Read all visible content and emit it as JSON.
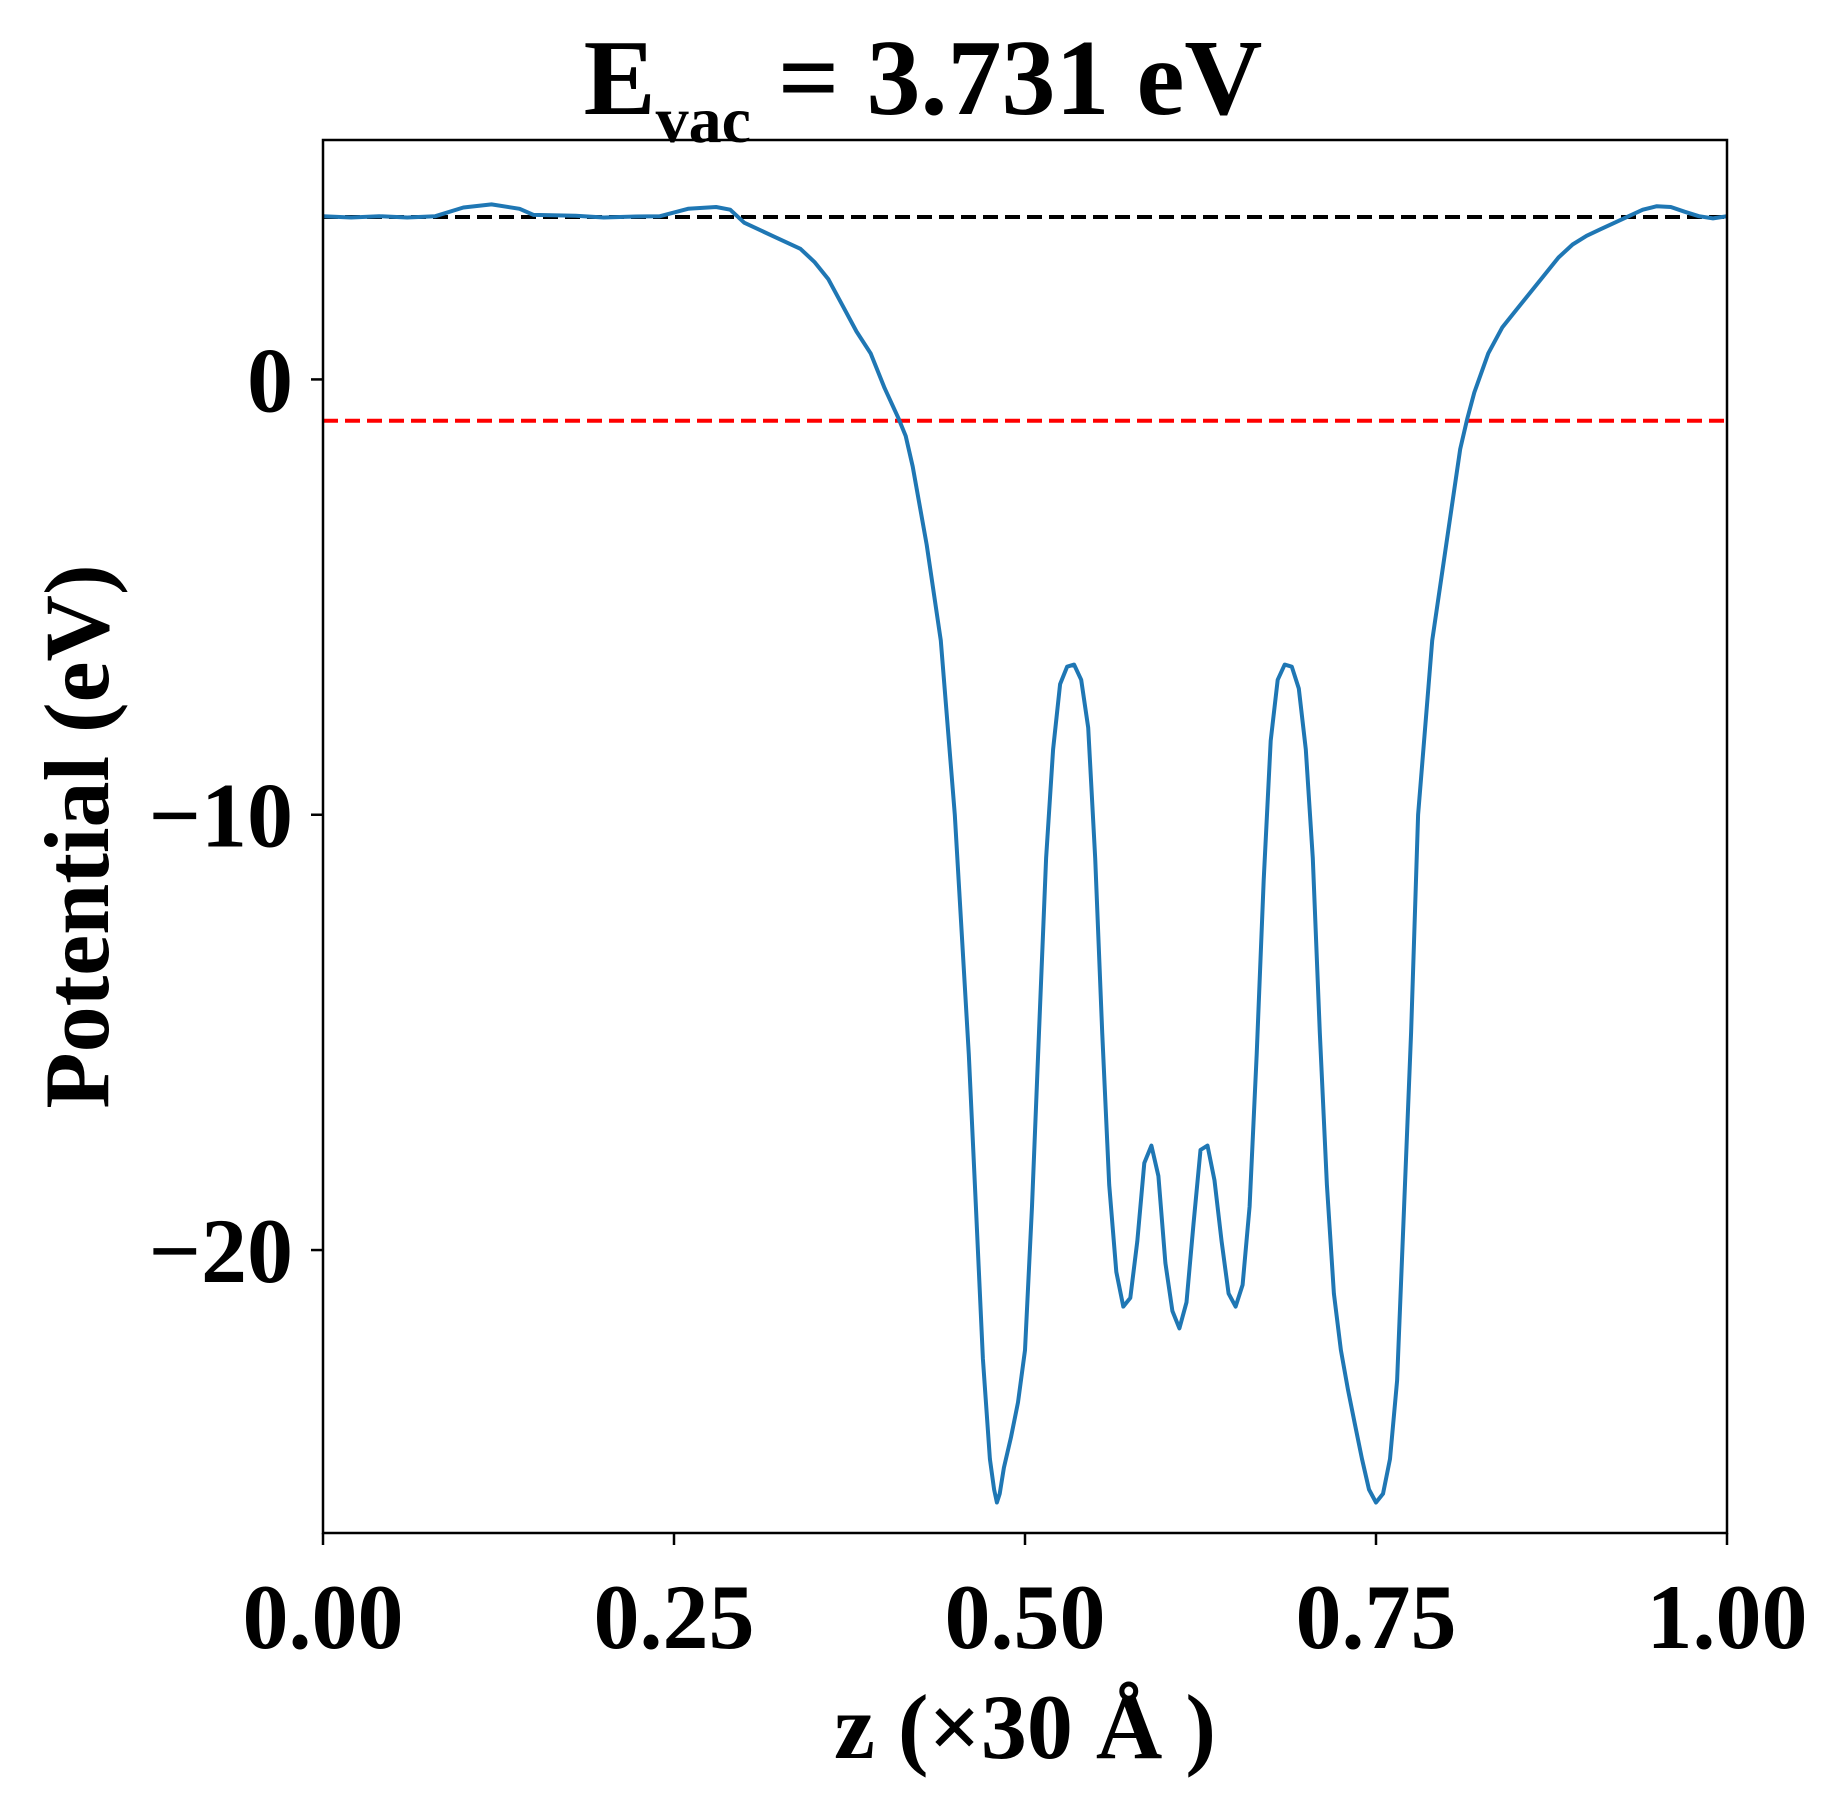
{
  "chart_data": {
    "type": "line",
    "title": {
      "main": "E",
      "subscript": "vac",
      "rest": " = 3.731 eV"
    },
    "xlabel": "z (×30 Å )",
    "ylabel": "Potential (eV)",
    "xlim": [
      0,
      1
    ],
    "ylim": [
      -26.5,
      5.5
    ],
    "xticks": [
      0,
      0.25,
      0.5,
      0.75,
      1
    ],
    "xtick_labels": [
      "0.00",
      "0.25",
      "0.50",
      "0.75",
      "1.00"
    ],
    "yticks": [
      0,
      -10,
      -20
    ],
    "ytick_labels": [
      "0",
      "−10",
      "−20"
    ],
    "grid": false,
    "hlines": [
      {
        "y": 3.731,
        "color": "#000000",
        "style": "dashed"
      },
      {
        "y": -0.95,
        "color": "#ff0000",
        "style": "dashed"
      }
    ],
    "series": [
      {
        "color": "#1f77b4",
        "points": [
          [
            0.0,
            3.75
          ],
          [
            0.02,
            3.72
          ],
          [
            0.04,
            3.75
          ],
          [
            0.06,
            3.72
          ],
          [
            0.08,
            3.75
          ],
          [
            0.1,
            3.95
          ],
          [
            0.12,
            4.02
          ],
          [
            0.14,
            3.92
          ],
          [
            0.15,
            3.78
          ],
          [
            0.18,
            3.76
          ],
          [
            0.2,
            3.72
          ],
          [
            0.22,
            3.74
          ],
          [
            0.24,
            3.75
          ],
          [
            0.26,
            3.92
          ],
          [
            0.28,
            3.96
          ],
          [
            0.29,
            3.9
          ],
          [
            0.3,
            3.6
          ],
          [
            0.32,
            3.3
          ],
          [
            0.34,
            3.0
          ],
          [
            0.35,
            2.7
          ],
          [
            0.36,
            2.3
          ],
          [
            0.37,
            1.7
          ],
          [
            0.38,
            1.1
          ],
          [
            0.39,
            0.6
          ],
          [
            0.4,
            -0.2
          ],
          [
            0.41,
            -0.9
          ],
          [
            0.415,
            -1.3
          ],
          [
            0.42,
            -2.0
          ],
          [
            0.43,
            -3.8
          ],
          [
            0.44,
            -6.0
          ],
          [
            0.45,
            -10.0
          ],
          [
            0.46,
            -15.5
          ],
          [
            0.465,
            -19.0
          ],
          [
            0.47,
            -22.5
          ],
          [
            0.475,
            -24.8
          ],
          [
            0.478,
            -25.5
          ],
          [
            0.48,
            -25.8
          ],
          [
            0.482,
            -25.6
          ],
          [
            0.485,
            -25.0
          ],
          [
            0.49,
            -24.3
          ],
          [
            0.495,
            -23.5
          ],
          [
            0.5,
            -22.3
          ],
          [
            0.505,
            -19.0
          ],
          [
            0.51,
            -15.0
          ],
          [
            0.515,
            -11.0
          ],
          [
            0.52,
            -8.5
          ],
          [
            0.525,
            -7.0
          ],
          [
            0.53,
            -6.6
          ],
          [
            0.535,
            -6.55
          ],
          [
            0.54,
            -6.9
          ],
          [
            0.545,
            -8.0
          ],
          [
            0.55,
            -11.0
          ],
          [
            0.555,
            -15.0
          ],
          [
            0.56,
            -18.5
          ],
          [
            0.565,
            -20.5
          ],
          [
            0.57,
            -21.3
          ],
          [
            0.575,
            -21.1
          ],
          [
            0.58,
            -19.8
          ],
          [
            0.585,
            -18.0
          ],
          [
            0.59,
            -17.6
          ],
          [
            0.595,
            -18.3
          ],
          [
            0.6,
            -20.3
          ],
          [
            0.605,
            -21.4
          ],
          [
            0.61,
            -21.8
          ],
          [
            0.615,
            -21.2
          ],
          [
            0.62,
            -19.4
          ],
          [
            0.625,
            -17.7
          ],
          [
            0.63,
            -17.6
          ],
          [
            0.635,
            -18.4
          ],
          [
            0.64,
            -19.8
          ],
          [
            0.645,
            -21.0
          ],
          [
            0.65,
            -21.3
          ],
          [
            0.655,
            -20.8
          ],
          [
            0.66,
            -19.0
          ],
          [
            0.665,
            -15.5
          ],
          [
            0.67,
            -11.5
          ],
          [
            0.675,
            -8.3
          ],
          [
            0.68,
            -6.9
          ],
          [
            0.685,
            -6.55
          ],
          [
            0.69,
            -6.6
          ],
          [
            0.695,
            -7.1
          ],
          [
            0.7,
            -8.5
          ],
          [
            0.705,
            -11.0
          ],
          [
            0.71,
            -15.0
          ],
          [
            0.715,
            -18.5
          ],
          [
            0.72,
            -21.0
          ],
          [
            0.725,
            -22.3
          ],
          [
            0.73,
            -23.2
          ],
          [
            0.735,
            -24.0
          ],
          [
            0.74,
            -24.8
          ],
          [
            0.745,
            -25.5
          ],
          [
            0.75,
            -25.8
          ],
          [
            0.755,
            -25.6
          ],
          [
            0.76,
            -24.8
          ],
          [
            0.765,
            -23.0
          ],
          [
            0.77,
            -19.0
          ],
          [
            0.775,
            -15.0
          ],
          [
            0.78,
            -10.0
          ],
          [
            0.79,
            -6.0
          ],
          [
            0.8,
            -3.8
          ],
          [
            0.81,
            -1.6
          ],
          [
            0.815,
            -0.9
          ],
          [
            0.82,
            -0.3
          ],
          [
            0.83,
            0.6
          ],
          [
            0.84,
            1.2
          ],
          [
            0.85,
            1.6
          ],
          [
            0.86,
            2.0
          ],
          [
            0.87,
            2.4
          ],
          [
            0.88,
            2.8
          ],
          [
            0.89,
            3.1
          ],
          [
            0.9,
            3.3
          ],
          [
            0.91,
            3.45
          ],
          [
            0.92,
            3.6
          ],
          [
            0.93,
            3.75
          ],
          [
            0.94,
            3.9
          ],
          [
            0.95,
            3.98
          ],
          [
            0.96,
            3.96
          ],
          [
            0.97,
            3.85
          ],
          [
            0.98,
            3.75
          ],
          [
            0.99,
            3.7
          ],
          [
            1.0,
            3.75
          ]
        ]
      }
    ]
  }
}
